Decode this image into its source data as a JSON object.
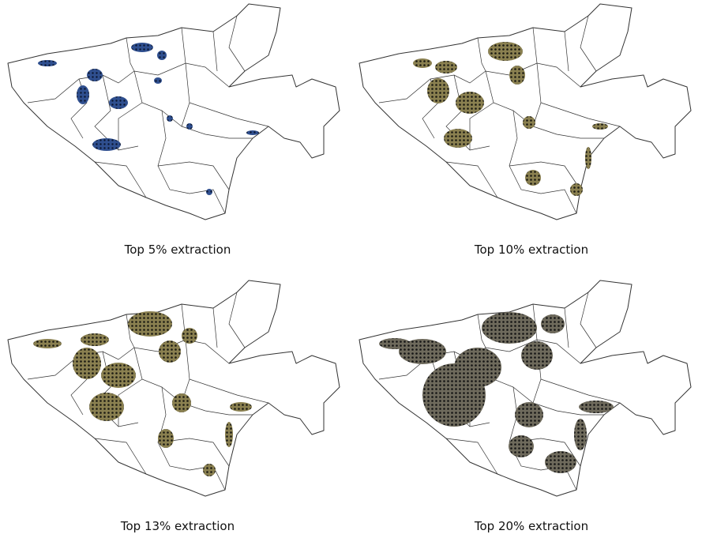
{
  "panels": [
    {
      "caption": "Top 5% extraction"
    },
    {
      "caption": "Top 10% extraction"
    },
    {
      "caption": "Top 13% extraction"
    },
    {
      "caption": "Top 20% extraction"
    }
  ]
}
